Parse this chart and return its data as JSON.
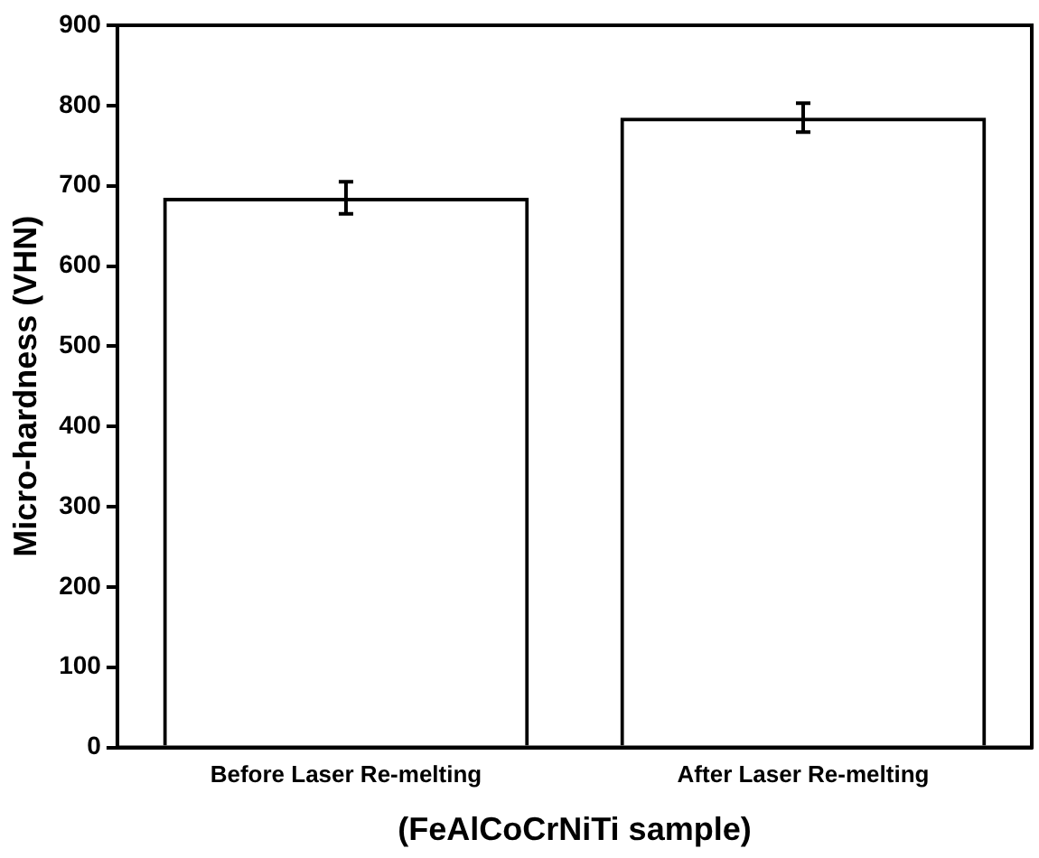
{
  "chart_data": {
    "type": "bar",
    "xlabel": "(FeAlCoCrNiTi sample)",
    "ylabel": "Micro-hardness (VHN)",
    "categories": [
      "Before Laser Re-melting",
      "After Laser Re-melting"
    ],
    "values": [
      685,
      785
    ],
    "errors": [
      20,
      18
    ],
    "color": "#000000",
    "ylim": [
      0,
      900
    ],
    "yticks": [
      0,
      100,
      200,
      300,
      400,
      500,
      600,
      700,
      800,
      900
    ]
  }
}
